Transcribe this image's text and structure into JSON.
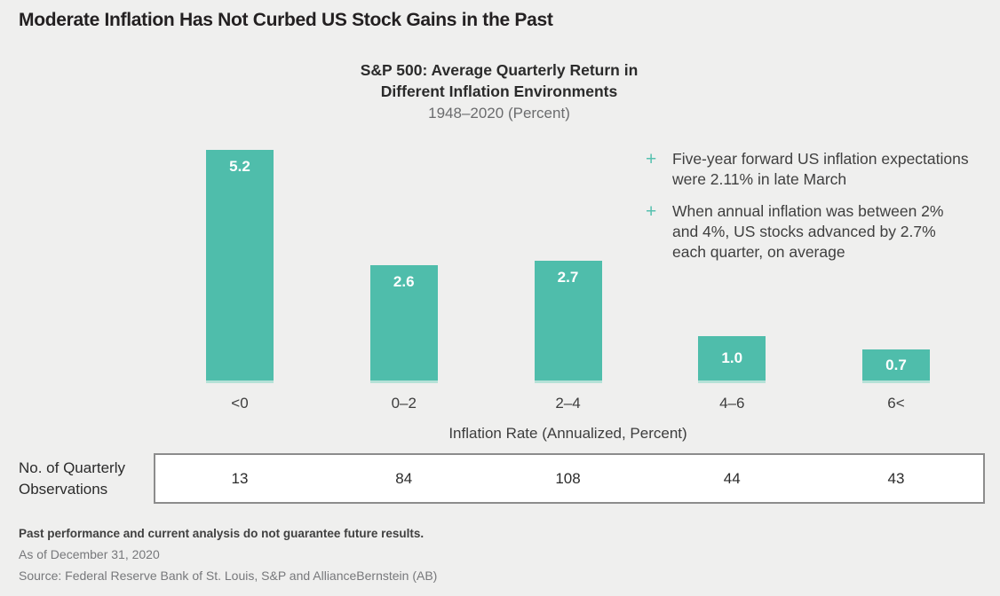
{
  "page": {
    "title": "Moderate Inflation Has Not Curbed US Stock Gains in the Past",
    "background_color": "#efefee"
  },
  "chart": {
    "title_line1": "S&P 500: Average Quarterly Return in",
    "title_line2": "Different Inflation Environments",
    "subtitle": "1948–2020 (Percent)",
    "xlabel": "Inflation Rate (Annualized, Percent)",
    "bar_color": "#4fbdab",
    "bar_base_color": "#b5e1d7"
  },
  "chart_data": {
    "type": "bar",
    "title": "S&P 500: Average Quarterly Return in Different Inflation Environments",
    "subtitle": "1948–2020 (Percent)",
    "categories": [
      "<0",
      "0–2",
      "2–4",
      "4–6",
      "6<"
    ],
    "values": [
      5.2,
      2.6,
      2.7,
      1.0,
      0.7
    ],
    "value_labels": [
      "5.2",
      "2.6",
      "2.7",
      "1.0",
      "0.7"
    ],
    "xlabel": "Inflation Rate (Annualized, Percent)",
    "ylabel": "",
    "ylim": [
      0,
      5.4
    ],
    "grid": false,
    "legend": false,
    "bar_color_hex": "#4fbdab",
    "observations_label": "No. of Quarterly Observations",
    "observations": [
      13,
      84,
      108,
      44,
      43
    ]
  },
  "annotations": {
    "marker": "+",
    "marker_color": "#57c1b0",
    "items": [
      "Five-year forward US inflation expectations were 2.11% in late March",
      "When annual inflation was between 2% and 4%, US stocks advanced by 2.7% each quarter, on average"
    ]
  },
  "observations_table": {
    "label_line1": "No. of Quarterly",
    "label_line2": "Observations",
    "values": [
      "13",
      "84",
      "108",
      "44",
      "43"
    ]
  },
  "footer": {
    "disclaimer": "Past performance and current analysis do not guarantee future results.",
    "as_of": "As of December 31, 2020",
    "source": "Source: Federal Reserve Bank of St. Louis, S&P and AllianceBernstein (AB)"
  }
}
